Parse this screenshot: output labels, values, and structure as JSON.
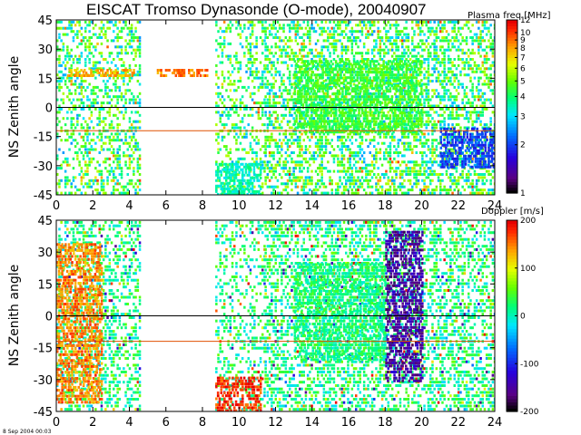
{
  "title": "EISCAT Tromso Dynasonde (O-mode),  20040907",
  "timestamp": "8 Sep 2004 00:03",
  "chart_data": [
    {
      "type": "heatmap",
      "variable": "Plasma freq",
      "colorbar_label": "Plasma freq [MHz]",
      "colorbar_ticks": [
        "1",
        "2",
        "3",
        "4",
        "5",
        "6",
        "7",
        "8",
        "9",
        "10",
        "12"
      ],
      "colorbar_scale": "log",
      "colorbar_range": [
        1,
        12
      ],
      "ylabel": "NS Zenith angle",
      "xlim": [
        0,
        24
      ],
      "ylim": [
        -45,
        45
      ],
      "x_ticks": [
        "0",
        "2",
        "4",
        "6",
        "8",
        "10",
        "12",
        "14",
        "16",
        "18",
        "20",
        "22",
        "24"
      ],
      "y_ticks": [
        "-45",
        "-30",
        "-15",
        "0",
        "15",
        "30",
        "45"
      ],
      "reference_lines": [
        {
          "y": 0,
          "color": "#000000"
        },
        {
          "y": -12,
          "color": "#e05000"
        }
      ],
      "activity_bands": [
        {
          "x": [
            0,
            4.6
          ],
          "level": 0.7
        },
        {
          "x": [
            8.7,
            11.4
          ],
          "level": 0.55
        },
        {
          "x": [
            11.4,
            24
          ],
          "level": 0.85
        }
      ],
      "features": [
        {
          "x": [
            0.5,
            4.2
          ],
          "y": [
            17,
            20
          ],
          "value_mhz": 8
        },
        {
          "x": [
            5.5,
            8.2
          ],
          "y": [
            17,
            20
          ],
          "value_mhz": 9
        },
        {
          "x": [
            8.7,
            11.2
          ],
          "y": [
            -44,
            -28
          ],
          "value_mhz": 3.5
        },
        {
          "x": [
            13,
            20
          ],
          "y": [
            -12,
            25
          ],
          "value_mhz": 4.5
        },
        {
          "x": [
            21,
            24
          ],
          "y": [
            -30,
            -10
          ],
          "value_mhz": 2
        }
      ]
    },
    {
      "type": "heatmap",
      "variable": "Doppler",
      "colorbar_label": "Doppler [m/s]",
      "colorbar_ticks": [
        "-200",
        "-100",
        "0",
        "100",
        "200"
      ],
      "colorbar_range": [
        -200,
        200
      ],
      "ylabel": "NS Zenith angle",
      "xlim": [
        0,
        24
      ],
      "ylim": [
        -45,
        45
      ],
      "x_ticks": [
        "0",
        "2",
        "4",
        "6",
        "8",
        "10",
        "12",
        "14",
        "16",
        "18",
        "20",
        "22",
        "24"
      ],
      "y_ticks": [
        "-45",
        "-30",
        "-15",
        "0",
        "15",
        "30",
        "45"
      ],
      "reference_lines": [
        {
          "y": 0,
          "color": "#000000"
        },
        {
          "y": -12,
          "color": "#e05000"
        }
      ],
      "activity_bands": [
        {
          "x": [
            0,
            4.6
          ],
          "level": 0.75
        },
        {
          "x": [
            8.7,
            11.4
          ],
          "level": 0.55
        },
        {
          "x": [
            11.4,
            24
          ],
          "level": 0.85
        }
      ],
      "features": [
        {
          "x": [
            8.7,
            11.2
          ],
          "y": [
            -44,
            -28
          ],
          "value_ms": 180
        },
        {
          "x": [
            18,
            20
          ],
          "y": [
            -30,
            40
          ],
          "value_ms": -150
        },
        {
          "x": [
            0,
            2.5
          ],
          "y": [
            -40,
            35
          ],
          "value_ms": 150
        },
        {
          "x": [
            13,
            18
          ],
          "y": [
            -20,
            25
          ],
          "value_ms": 20
        }
      ]
    }
  ]
}
